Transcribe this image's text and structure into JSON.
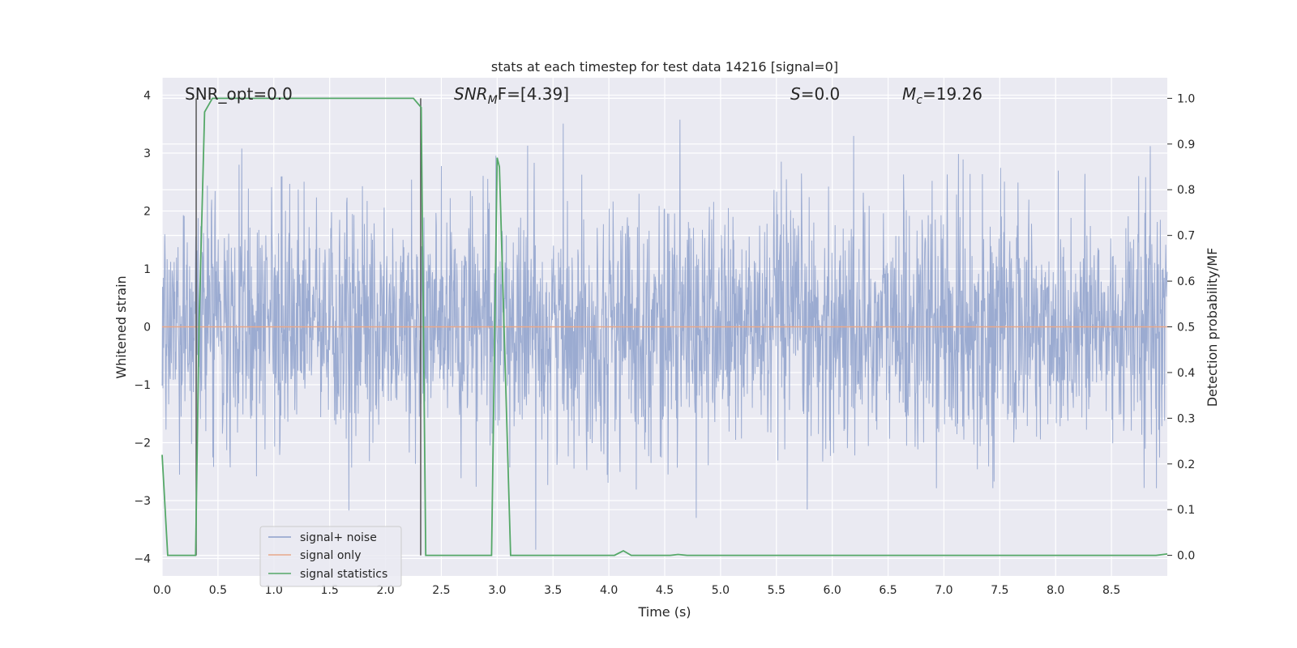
{
  "chart_data": {
    "type": "line",
    "title": "stats at each timestep for test data 14216 [signal=0]",
    "xlabel": "Time (s)",
    "ylabel": "Whitened strain",
    "y2label": "Detection probability/MF",
    "xlim": [
      0.0,
      9.0
    ],
    "ylim": [
      -4.3,
      4.3
    ],
    "y2lim": [
      -0.045,
      1.045
    ],
    "xticks": [
      "0.0",
      "0.5",
      "1.0",
      "1.5",
      "2.0",
      "2.5",
      "3.0",
      "3.5",
      "4.0",
      "4.5",
      "5.0",
      "5.5",
      "6.0",
      "6.5",
      "7.0",
      "7.5",
      "8.0",
      "8.5"
    ],
    "yticks": [
      "4",
      "3",
      "2",
      "1",
      "0",
      "−1",
      "−2",
      "−3",
      "−4"
    ],
    "y2ticks": [
      "1.0",
      "0.9",
      "0.8",
      "0.7",
      "0.6",
      "0.5",
      "0.4",
      "0.3",
      "0.2",
      "0.1",
      "0.0"
    ],
    "grid": true,
    "legend_position": "lower-left",
    "annotations": {
      "snr_opt": "SNR_opt=0.0",
      "snr_mf_main": "SNR",
      "snr_mf_sub": "M",
      "snr_mf_rest": "F=[4.39]",
      "s_main": "S",
      "s_rest": "=0.0",
      "mc_main": "M",
      "mc_sub": "c",
      "mc_rest": "=19.26"
    },
    "series": [
      {
        "name": "signal+ noise",
        "color": "#8da0cb",
        "axis": "left",
        "description_of_values": "whitened strain noise, roughly symmetric, amplitude up to about ±3.9"
      },
      {
        "name": "signal only",
        "color": "#e8a88a",
        "axis": "left",
        "values": "constant 0"
      },
      {
        "name": "signal statistics",
        "color": "#55a868",
        "axis": "right",
        "x": [
          0.0,
          0.05,
          0.3,
          0.33,
          0.38,
          0.45,
          2.25,
          2.32,
          2.36,
          2.5,
          2.95,
          3.0,
          3.02,
          3.12,
          3.15,
          4.05,
          4.13,
          4.2,
          4.55,
          4.62,
          4.7,
          6.7,
          8.9,
          9.0
        ],
        "y": [
          0.22,
          0.0,
          0.0,
          0.5,
          0.97,
          1.0,
          1.0,
          0.98,
          0.0,
          0.0,
          0.0,
          0.87,
          0.85,
          0.0,
          0.0,
          0.0,
          0.01,
          0.0,
          0.0,
          0.002,
          0.0,
          0.0,
          0.0,
          0.003
        ]
      }
    ],
    "vertical_markers": [
      {
        "x": 0.305,
        "color": "#555555"
      },
      {
        "x": 2.315,
        "color": "#555555"
      }
    ]
  }
}
